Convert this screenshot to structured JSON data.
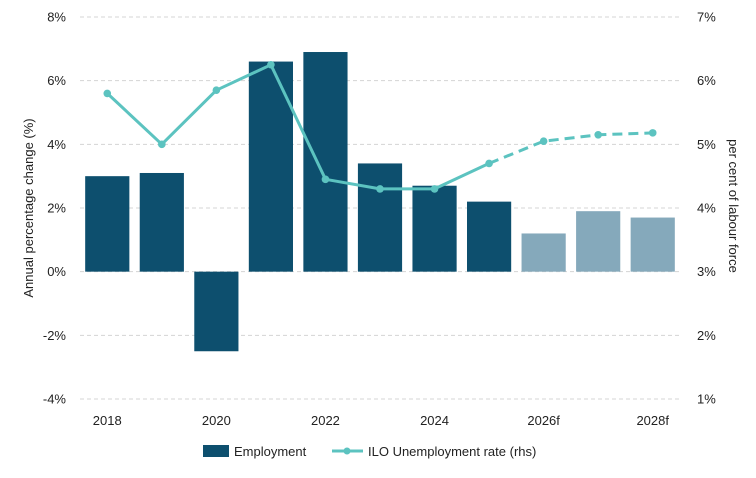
{
  "chart_data": {
    "type": "bar",
    "categories": [
      "2018",
      "2019",
      "2020",
      "2021",
      "2022",
      "2023",
      "2024",
      "2025",
      "2026f",
      "2027",
      "2028f"
    ],
    "x_tick_labels": [
      "2018",
      "2020",
      "2022",
      "2024",
      "2026f",
      "2028f"
    ],
    "ylabel": "Annual percentage change (%)",
    "ylabel_right": "per cent of labour force",
    "ylim": [
      -4,
      8
    ],
    "ylim_right": [
      1,
      7
    ],
    "y_ticks": [
      "-4%",
      "-2%",
      "0%",
      "2%",
      "4%",
      "6%",
      "8%"
    ],
    "y_ticks_right": [
      "1%",
      "2%",
      "3%",
      "4%",
      "5%",
      "6%",
      "7%"
    ],
    "grid": true,
    "legend_position": "bottom",
    "series": [
      {
        "name": "Employment",
        "type": "bar",
        "axis": "left",
        "values": [
          3.0,
          3.1,
          -2.5,
          6.6,
          6.9,
          3.4,
          2.7,
          2.2,
          1.2,
          1.9,
          1.7
        ],
        "forecast_from_index": 8,
        "color": "#0d4f6e",
        "forecast_color": "#85a9bb"
      },
      {
        "name": "ILO Unemployment rate (rhs)",
        "type": "line",
        "axis": "right",
        "values": [
          5.8,
          5.0,
          5.85,
          6.25,
          4.45,
          4.3,
          4.3,
          4.7,
          5.05,
          5.15,
          5.18
        ],
        "dashed_from_index": 7,
        "color": "#5cc3c0"
      }
    ]
  }
}
